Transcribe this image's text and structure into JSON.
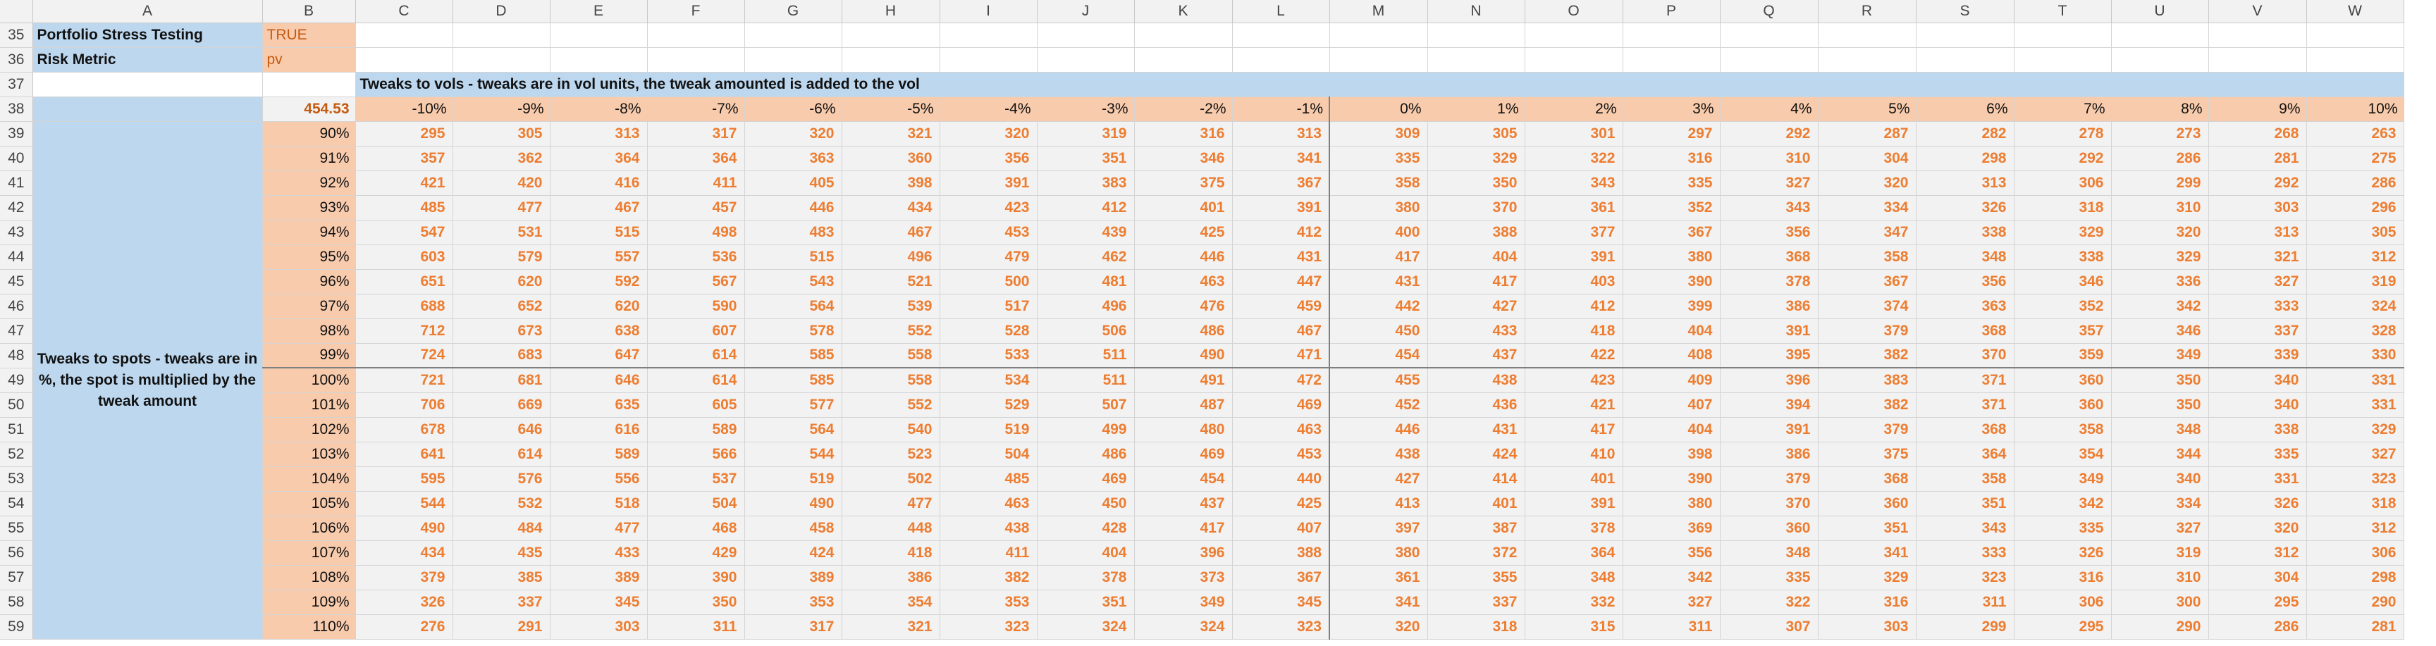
{
  "columns": [
    "A",
    "B",
    "C",
    "D",
    "E",
    "F",
    "G",
    "H",
    "I",
    "J",
    "K",
    "L",
    "M",
    "N",
    "O",
    "P",
    "Q",
    "R",
    "S",
    "T",
    "U",
    "V",
    "W"
  ],
  "rows": [
    35,
    36,
    37,
    38,
    39,
    40,
    41,
    42,
    43,
    44,
    45,
    46,
    47,
    48,
    49,
    50,
    51,
    52,
    53,
    54,
    55,
    56,
    57,
    58,
    59
  ],
  "info": {
    "stress_label": "Portfolio Stress Testing",
    "stress_value": "TRUE",
    "metric_label": "Risk Metric",
    "metric_value": "pv"
  },
  "banner": "Tweaks to vols - tweaks are in vol units, the tweak amounted is added to the vol",
  "spot_label": "Tweaks to spots - tweaks are in %, the spot is multiplied by the tweak amount",
  "anchor_value": "454.53",
  "vol_tweaks": [
    "-10%",
    "-9%",
    "-8%",
    "-7%",
    "-6%",
    "-5%",
    "-4%",
    "-3%",
    "-2%",
    "-1%",
    "0%",
    "1%",
    "2%",
    "3%",
    "4%",
    "5%",
    "6%",
    "7%",
    "8%",
    "9%",
    "10%"
  ],
  "spot_tweaks": [
    "90%",
    "91%",
    "92%",
    "93%",
    "94%",
    "95%",
    "96%",
    "97%",
    "98%",
    "99%",
    "100%",
    "101%",
    "102%",
    "103%",
    "104%",
    "105%",
    "106%",
    "107%",
    "108%",
    "109%",
    "110%"
  ],
  "values": [
    [
      295,
      305,
      313,
      317,
      320,
      321,
      320,
      319,
      316,
      313,
      309,
      305,
      301,
      297,
      292,
      287,
      282,
      278,
      273,
      268,
      263
    ],
    [
      357,
      362,
      364,
      364,
      363,
      360,
      356,
      351,
      346,
      341,
      335,
      329,
      322,
      316,
      310,
      304,
      298,
      292,
      286,
      281,
      275
    ],
    [
      421,
      420,
      416,
      411,
      405,
      398,
      391,
      383,
      375,
      367,
      358,
      350,
      343,
      335,
      327,
      320,
      313,
      306,
      299,
      292,
      286
    ],
    [
      485,
      477,
      467,
      457,
      446,
      434,
      423,
      412,
      401,
      391,
      380,
      370,
      361,
      352,
      343,
      334,
      326,
      318,
      310,
      303,
      296
    ],
    [
      547,
      531,
      515,
      498,
      483,
      467,
      453,
      439,
      425,
      412,
      400,
      388,
      377,
      367,
      356,
      347,
      338,
      329,
      320,
      313,
      305
    ],
    [
      603,
      579,
      557,
      536,
      515,
      496,
      479,
      462,
      446,
      431,
      417,
      404,
      391,
      380,
      368,
      358,
      348,
      338,
      329,
      321,
      312
    ],
    [
      651,
      620,
      592,
      567,
      543,
      521,
      500,
      481,
      463,
      447,
      431,
      417,
      403,
      390,
      378,
      367,
      356,
      346,
      336,
      327,
      319
    ],
    [
      688,
      652,
      620,
      590,
      564,
      539,
      517,
      496,
      476,
      459,
      442,
      427,
      412,
      399,
      386,
      374,
      363,
      352,
      342,
      333,
      324
    ],
    [
      712,
      673,
      638,
      607,
      578,
      552,
      528,
      506,
      486,
      467,
      450,
      433,
      418,
      404,
      391,
      379,
      368,
      357,
      346,
      337,
      328
    ],
    [
      724,
      683,
      647,
      614,
      585,
      558,
      533,
      511,
      490,
      471,
      454,
      437,
      422,
      408,
      395,
      382,
      370,
      359,
      349,
      339,
      330
    ],
    [
      721,
      681,
      646,
      614,
      585,
      558,
      534,
      511,
      491,
      472,
      455,
      438,
      423,
      409,
      396,
      383,
      371,
      360,
      350,
      340,
      331
    ],
    [
      706,
      669,
      635,
      605,
      577,
      552,
      529,
      507,
      487,
      469,
      452,
      436,
      421,
      407,
      394,
      382,
      371,
      360,
      350,
      340,
      331
    ],
    [
      678,
      646,
      616,
      589,
      564,
      540,
      519,
      499,
      480,
      463,
      446,
      431,
      417,
      404,
      391,
      379,
      368,
      358,
      348,
      338,
      329
    ],
    [
      641,
      614,
      589,
      566,
      544,
      523,
      504,
      486,
      469,
      453,
      438,
      424,
      410,
      398,
      386,
      375,
      364,
      354,
      344,
      335,
      327
    ],
    [
      595,
      576,
      556,
      537,
      519,
      502,
      485,
      469,
      454,
      440,
      427,
      414,
      401,
      390,
      379,
      368,
      358,
      349,
      340,
      331,
      323
    ],
    [
      544,
      532,
      518,
      504,
      490,
      477,
      463,
      450,
      437,
      425,
      413,
      401,
      391,
      380,
      370,
      360,
      351,
      342,
      334,
      326,
      318
    ],
    [
      490,
      484,
      477,
      468,
      458,
      448,
      438,
      428,
      417,
      407,
      397,
      387,
      378,
      369,
      360,
      351,
      343,
      335,
      327,
      320,
      312
    ],
    [
      434,
      435,
      433,
      429,
      424,
      418,
      411,
      404,
      396,
      388,
      380,
      372,
      364,
      356,
      348,
      341,
      333,
      326,
      319,
      312,
      306
    ],
    [
      379,
      385,
      389,
      390,
      389,
      386,
      382,
      378,
      373,
      367,
      361,
      355,
      348,
      342,
      335,
      329,
      323,
      316,
      310,
      304,
      298
    ],
    [
      326,
      337,
      345,
      350,
      353,
      354,
      353,
      351,
      349,
      345,
      341,
      337,
      332,
      327,
      322,
      316,
      311,
      306,
      300,
      295,
      290
    ],
    [
      276,
      291,
      303,
      311,
      317,
      321,
      323,
      324,
      324,
      323,
      320,
      318,
      315,
      311,
      307,
      303,
      299,
      295,
      290,
      286,
      281
    ]
  ]
}
